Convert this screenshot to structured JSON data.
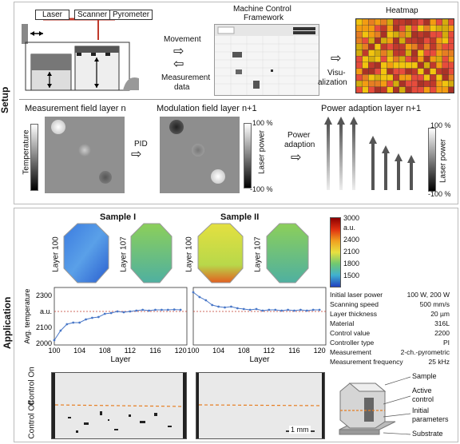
{
  "sections": {
    "setup": "Setup",
    "application": "Application"
  },
  "setup": {
    "laser": "Laser",
    "scanner": "Scanner",
    "pyrometer": "Pyrometer",
    "mcf_title_1": "Machine Control",
    "mcf_title_2": "Framework",
    "movement": "Movement",
    "meas_data_1": "Measurement",
    "meas_data_2": "data",
    "heatmap": "Heatmap",
    "visu_1": "Visu-",
    "visu_2": "alization",
    "meas_field": "Measurement field layer n",
    "mod_field": "Modulation field layer n+1",
    "power_adapt_layer": "Power adaption layer n+1",
    "temperature": "Temperature",
    "pid": "PID",
    "laser_power": "Laser power",
    "pct_top": "100 %",
    "pct_bot": "-100 %",
    "power": "Power",
    "adaption": "adaption"
  },
  "application": {
    "sample1": "Sample I",
    "sample2": "Sample II",
    "layer100": "Layer 100",
    "layer107": "Layer 107",
    "colorbar": {
      "ticks": [
        "3000",
        "2400",
        "2100",
        "1800",
        "1500"
      ],
      "unit": "a.u."
    },
    "params": [
      {
        "k": "Initial laser power",
        "v": "100 W, 200 W"
      },
      {
        "k": "Scanning speed",
        "v": "500 mm/s"
      },
      {
        "k": "Layer thickness",
        "v": "20 µm"
      },
      {
        "k": "Material",
        "v": "316L"
      },
      {
        "k": "Control value",
        "v": "2200"
      },
      {
        "k": "Controller type",
        "v": "PI"
      },
      {
        "k": "Measurement",
        "v": "2-ch.-pyrometric"
      },
      {
        "k": "Measurement frequency",
        "v": "25 kHz"
      }
    ],
    "control_on": "Control On",
    "control_off": "Control Off",
    "scale": "1 mm",
    "sample_lbl": "Sample",
    "active_1": "Active",
    "active_2": "control",
    "initial_1": "Initial",
    "initial_2": "parameters",
    "substrate": "Substrate"
  },
  "chart_data": [
    {
      "type": "line",
      "title": "",
      "xlabel": "Layer",
      "ylabel": "Avg. temperature",
      "xlim": [
        100,
        121
      ],
      "ylim": [
        1990,
        2350
      ],
      "xticks": [
        "100",
        "104",
        "108",
        "112",
        "116",
        "120"
      ],
      "yticks": [
        "2000",
        "2100",
        "a.u.",
        "2300"
      ],
      "reference": 2200,
      "series": [
        {
          "name": "",
          "x": [
            100,
            101,
            102,
            103,
            104,
            105,
            106,
            107,
            108,
            109,
            110,
            111,
            112,
            113,
            114,
            115,
            116,
            117,
            118,
            119,
            120
          ],
          "y": [
            2020,
            2080,
            2120,
            2130,
            2130,
            2150,
            2160,
            2165,
            2185,
            2190,
            2200,
            2195,
            2200,
            2205,
            2210,
            2205,
            2210,
            2210,
            2210,
            2212,
            2210
          ]
        }
      ]
    },
    {
      "type": "line",
      "title": "",
      "xlabel": "Layer",
      "ylabel": "",
      "xlim": [
        100,
        121
      ],
      "ylim": [
        1990,
        2350
      ],
      "xticks": [
        "100",
        "104",
        "108",
        "112",
        "116",
        "120"
      ],
      "reference": 2200,
      "series": [
        {
          "name": "",
          "x": [
            100,
            101,
            102,
            103,
            104,
            105,
            106,
            107,
            108,
            109,
            110,
            111,
            112,
            113,
            114,
            115,
            116,
            117,
            118,
            119,
            120
          ],
          "y": [
            2320,
            2290,
            2270,
            2240,
            2230,
            2225,
            2230,
            2220,
            2215,
            2210,
            2215,
            2205,
            2210,
            2210,
            2205,
            2210,
            2205,
            2210,
            2205,
            2210,
            2210
          ]
        }
      ]
    }
  ]
}
